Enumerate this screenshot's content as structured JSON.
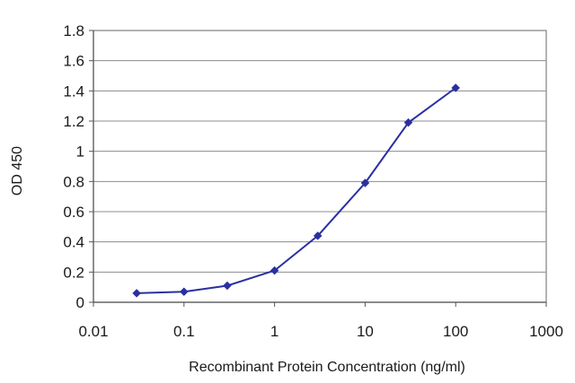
{
  "chart_data": {
    "type": "line",
    "xscale": "log",
    "title": "",
    "xlabel": "Recombinant Protein Concentration (ng/ml)",
    "ylabel": "OD 450",
    "xlim": [
      0.01,
      1000
    ],
    "ylim": [
      0,
      1.8
    ],
    "xticks": [
      0.01,
      0.1,
      1,
      10,
      100,
      1000
    ],
    "xtick_labels": [
      "0.01",
      "0.1",
      "1",
      "10",
      "100",
      "1000"
    ],
    "yticks": [
      0,
      0.2,
      0.4,
      0.6,
      0.8,
      1,
      1.2,
      1.4,
      1.6,
      1.8
    ],
    "ytick_labels": [
      "0",
      "0.2",
      "0.4",
      "0.6",
      "0.8",
      "1",
      "1.2",
      "1.4",
      "1.6",
      "1.8"
    ],
    "grid": "horizontal",
    "legend": "none",
    "series": [
      {
        "color": "#2a2fa0",
        "x": [
          0.03,
          0.1,
          0.3,
          1,
          3,
          10,
          30,
          100
        ],
        "y": [
          0.06,
          0.07,
          0.11,
          0.21,
          0.44,
          0.79,
          1.19,
          1.42
        ]
      }
    ]
  }
}
